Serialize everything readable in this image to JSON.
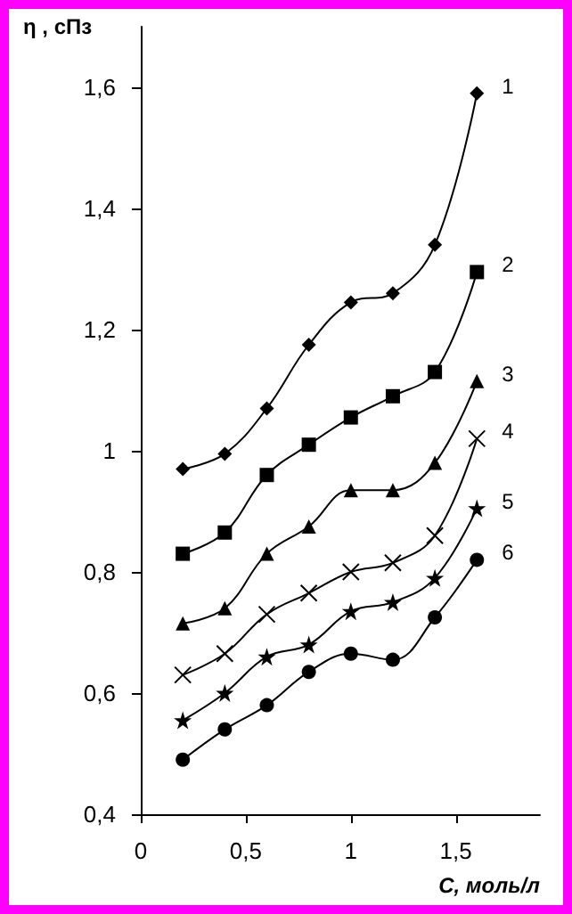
{
  "chart_data": {
    "type": "line",
    "xlabel": "С, моль/л",
    "ylabel": "η , сПз",
    "x": [
      0.2,
      0.4,
      0.6,
      0.8,
      1.0,
      1.2,
      1.4,
      1.6
    ],
    "xlim": [
      0,
      1.9
    ],
    "xticks": [
      0,
      {
        "value": 0.5,
        "label": "0,5"
      },
      1,
      {
        "value": 1.5,
        "label": "1,5"
      }
    ],
    "ylim": [
      0.4,
      1.7
    ],
    "yticks": [
      {
        "value": 0.4,
        "label": "0,4"
      },
      {
        "value": 0.6,
        "label": "0,6"
      },
      {
        "value": 0.8,
        "label": "0,8"
      },
      1,
      {
        "value": 1.2,
        "label": "1,2"
      },
      {
        "value": 1.4,
        "label": "1,4"
      },
      {
        "value": 1.6,
        "label": "1,6"
      }
    ],
    "grid": false,
    "legend": false,
    "line_style": "solid",
    "series": [
      {
        "name": "1",
        "color": "#000000",
        "marker": "diamond",
        "values": [
          0.97,
          0.995,
          1.07,
          1.175,
          1.245,
          1.26,
          1.34,
          1.59
        ]
      },
      {
        "name": "2",
        "color": "#000000",
        "marker": "square",
        "values": [
          0.83,
          0.865,
          0.96,
          1.01,
          1.055,
          1.09,
          1.13,
          1.295
        ]
      },
      {
        "name": "3",
        "color": "#000000",
        "marker": "triangle",
        "values": [
          0.715,
          0.74,
          0.83,
          0.875,
          0.935,
          0.935,
          0.98,
          1.115
        ]
      },
      {
        "name": "4",
        "color": "#000000",
        "marker": "cross",
        "values": [
          0.63,
          0.665,
          0.73,
          0.765,
          0.8,
          0.815,
          0.86,
          1.02
        ]
      },
      {
        "name": "5",
        "color": "#000000",
        "marker": "star",
        "values": [
          0.555,
          0.6,
          0.66,
          0.68,
          0.735,
          0.75,
          0.79,
          0.905
        ]
      },
      {
        "name": "6",
        "color": "#000000",
        "marker": "circle",
        "values": [
          0.49,
          0.54,
          0.58,
          0.635,
          0.665,
          0.655,
          0.725,
          0.82
        ]
      }
    ]
  }
}
